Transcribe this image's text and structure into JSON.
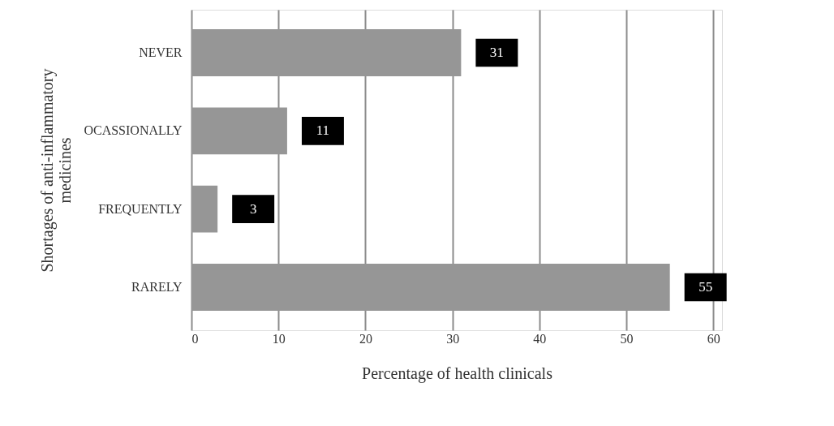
{
  "chart_data": {
    "type": "bar",
    "orientation": "horizontal",
    "categories": [
      "NEVER",
      "OCASSIONALLY",
      "FREQUENTLY",
      "RARELY"
    ],
    "values": [
      31,
      11,
      3,
      55
    ],
    "color": "#969696",
    "xlim": [
      0,
      61
    ],
    "xticks": [
      0,
      10,
      20,
      30,
      40,
      50,
      60
    ],
    "xlabel": "Percentage of health clinicals",
    "ylabel": "Shortages of anti-inflammatory medicines",
    "grid": "x",
    "data_labels": true
  }
}
